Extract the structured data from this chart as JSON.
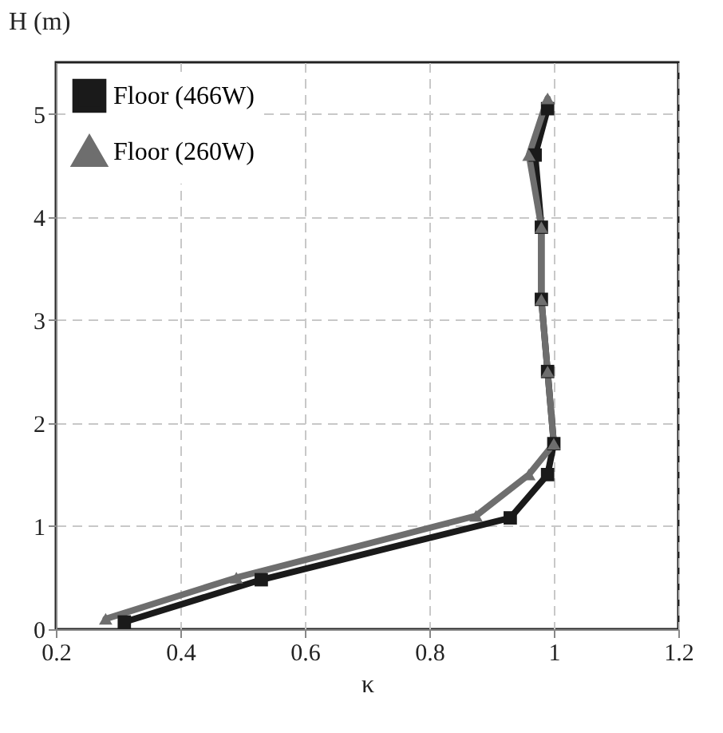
{
  "chart_data": {
    "type": "line",
    "xlabel": "κ",
    "ylabel": "H (m)",
    "xlim": [
      0.2,
      1.2
    ],
    "xticks": [
      0.2,
      0.4,
      0.6,
      0.8,
      1,
      1.2
    ],
    "ylim": [
      0,
      5.5
    ],
    "yticks": [
      0,
      1,
      2,
      3,
      4,
      5
    ],
    "grid": true,
    "legend": "top left",
    "line_style": "solid",
    "series": [
      {
        "name": "Floor (466W)",
        "color": "#1a1a1a",
        "marker": "square",
        "x": [
          0.31,
          0.53,
          0.93,
          0.99,
          1.0,
          0.99,
          0.98,
          0.98,
          0.97,
          0.99
        ],
        "values": [
          0.07,
          0.48,
          1.08,
          1.5,
          1.8,
          2.5,
          3.2,
          3.9,
          4.6,
          5.05
        ]
      },
      {
        "name": "Floor (260W)",
        "color": "#6e6e6e",
        "marker": "triangle",
        "x": [
          0.28,
          0.49,
          0.875,
          0.96,
          1.0,
          0.99,
          0.98,
          0.98,
          0.96,
          0.99
        ],
        "values": [
          0.1,
          0.5,
          1.1,
          1.5,
          1.8,
          2.5,
          3.2,
          3.9,
          4.6,
          5.15
        ]
      }
    ]
  }
}
